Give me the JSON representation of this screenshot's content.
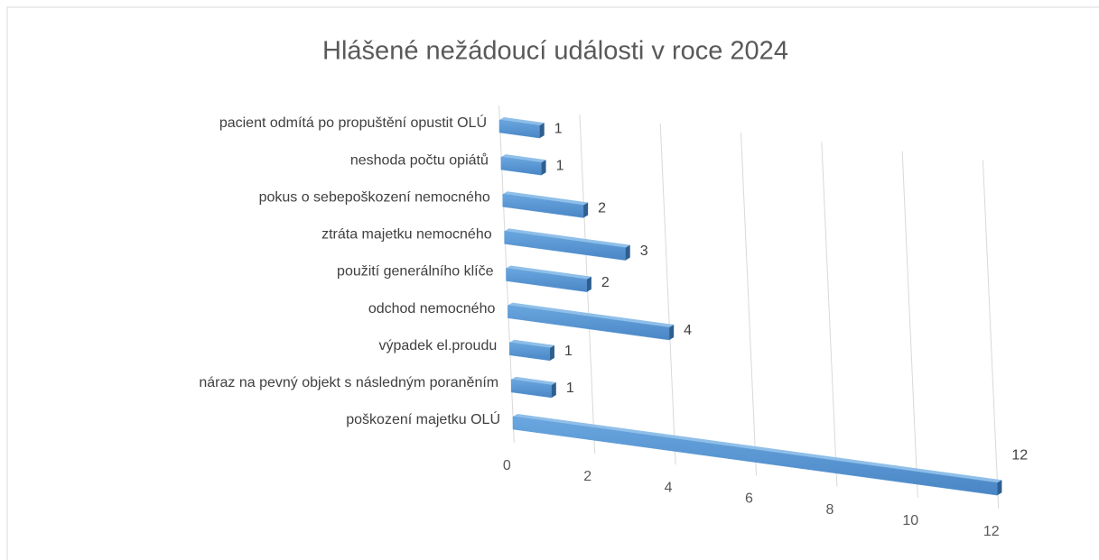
{
  "chart_data": {
    "type": "bar3d",
    "title": "Hlášené nežádoucí události v roce 2024",
    "categories": [
      "pacient odmítá po propuštění opustit OLÚ",
      "neshoda počtu opiátů",
      "pokus o sebepoškození nemocného",
      "ztráta majetku nemocného",
      "použití generálního klíče",
      "odchod nemocného",
      "výpadek el.proudu",
      "náraz na pevný objekt s následným poraněním",
      "poškození majetku OLÚ"
    ],
    "values": [
      1,
      1,
      2,
      3,
      2,
      4,
      1,
      1,
      12
    ],
    "color": "#5b9bd5",
    "xlim": [
      0,
      12
    ],
    "xticks": [
      0,
      2,
      4,
      6,
      8,
      10,
      12
    ],
    "grid": true
  }
}
